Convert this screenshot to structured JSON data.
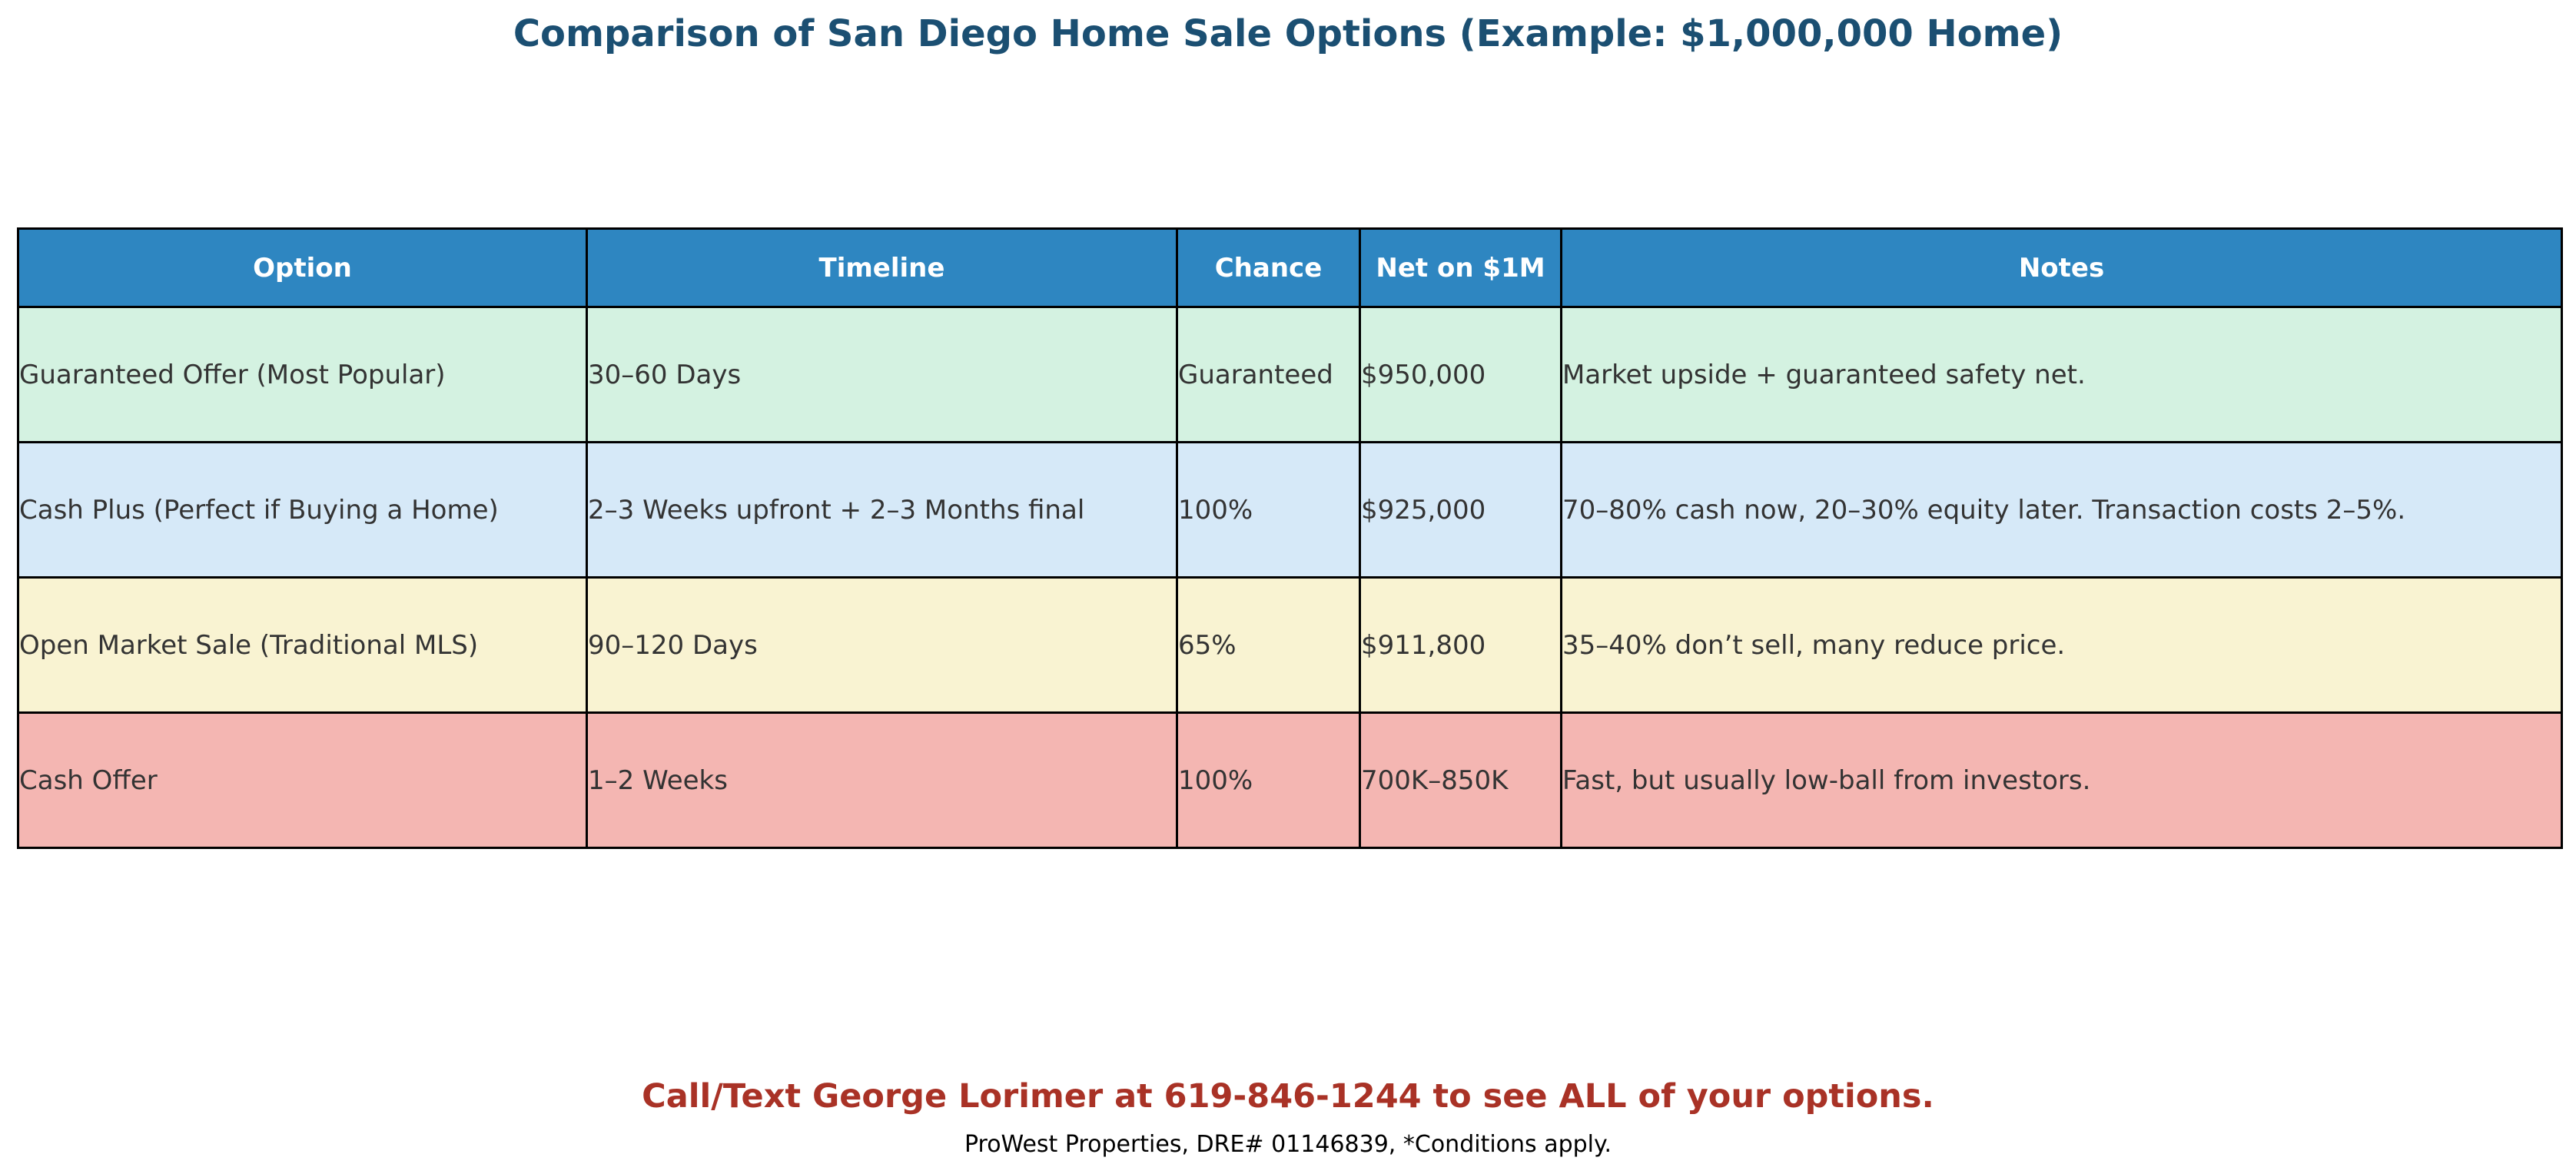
{
  "title": "Comparison of San Diego Home Sale Options (Example: $1,000,000 Home)",
  "table": {
    "columns": [
      "Option",
      "Timeline",
      "Chance",
      "Net on $1M",
      "Notes"
    ],
    "header_color": "#2e86c1",
    "rows": [
      {
        "option": "Guaranteed Offer (Most Popular)",
        "timeline": "30–60 Days",
        "chance": "Guaranteed",
        "net": "$950,000",
        "notes": "Market upside + guaranteed safety net.",
        "color": "#d4f2e1"
      },
      {
        "option": "Cash Plus (Perfect if Buying a Home)",
        "timeline": "2–3 Weeks upfront + 2–3 Months final",
        "chance": "100%",
        "net": "$925,000",
        "notes": "70–80% cash now, 20–30% equity later. Transaction costs 2–5%.",
        "color": "#d6e9f8"
      },
      {
        "option": "Open Market Sale (Traditional MLS)",
        "timeline": "90–120 Days",
        "chance": "65%",
        "net": "$911,800",
        "notes": "35–40% don’t sell, many reduce price.",
        "color": "#f9f3d2"
      },
      {
        "option": "Cash Offer",
        "timeline": "1–2 Weeks",
        "chance": "100%",
        "net": "700K–850K",
        "notes": "Fast, but usually low-ball from investors.",
        "color": "#f4b6b2"
      }
    ]
  },
  "footer": {
    "cta": "Call/Text George Lorimer at 619-846-1244 to see ALL of your options.",
    "note": "ProWest Properties, DRE# 01146839, *Conditions apply."
  }
}
